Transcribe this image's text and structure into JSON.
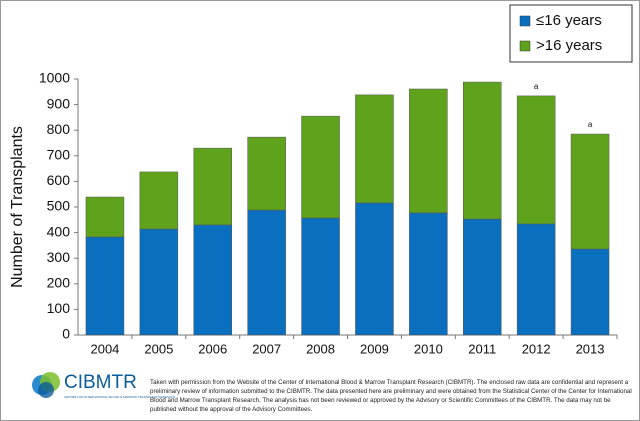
{
  "chart_data": {
    "type": "stacked_bar",
    "ylabel": "Number of  Transplants",
    "categories": [
      "2004",
      "2005",
      "2006",
      "2007",
      "2008",
      "2009",
      "2010",
      "2011",
      "2012",
      "2013"
    ],
    "series": [
      {
        "name": "≤16 years",
        "color": "#0a6fbf",
        "values": [
          383,
          414,
          430,
          488,
          457,
          516,
          477,
          453,
          434,
          336
        ]
      },
      {
        "name": ">16 years",
        "color": "#5ea31b",
        "values": [
          156,
          223,
          300,
          285,
          398,
          422,
          484,
          535,
          500,
          449
        ]
      }
    ],
    "ylim": [
      0,
      1000
    ],
    "yticks": [
      0,
      100,
      200,
      300,
      400,
      500,
      600,
      700,
      800,
      900,
      1000
    ],
    "grid": false,
    "legend": "top-right",
    "annotations": [
      {
        "x": "2012",
        "text": "a"
      },
      {
        "x": "2013",
        "text": "a"
      }
    ]
  },
  "footer": {
    "logo": "CIBMTR",
    "logo_sub": "CENTER FOR INTERNATIONAL BLOOD & MARROW TRANSPLANT RESEARCH",
    "text": "Taken with permission from the Website of the Center of International Blood & Marrow Transplant Research (CIBMTR).  The enclosed raw data are confidential and represent a preliminary review of information submitted to the CIBMTR. The data presented here are preliminary and were obtained from the Statistical Center of the Center for International Blood and Marrow Transplant Research. The analysis has not been reviewed or approved by the Advisory or Scientific Committees of the CIBMTR. The data may not be published without the approval of the Advisory Committees."
  }
}
